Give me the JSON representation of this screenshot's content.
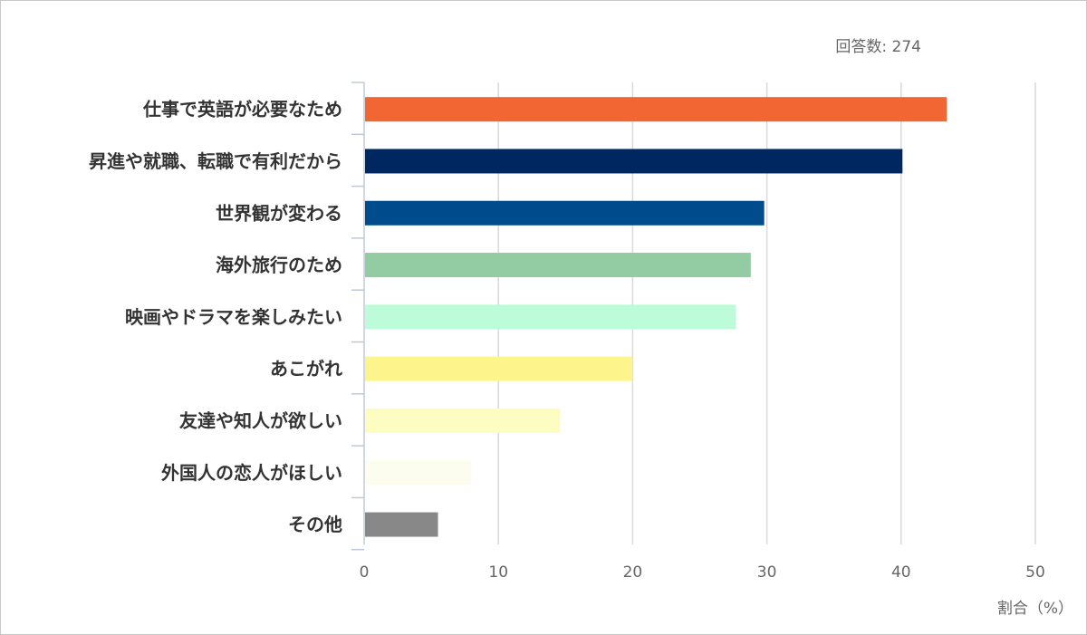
{
  "chart_data": {
    "type": "bar",
    "orientation": "horizontal",
    "respondents_label": "回答数: 274",
    "xlabel": "割合（%）",
    "xlim": [
      0,
      50
    ],
    "xticks": [
      "0",
      "10",
      "20",
      "30",
      "40",
      "50"
    ],
    "grid": true,
    "categories": [
      "仕事で英語が必要なため",
      "昇進や就職、転職で有利だから",
      "世界観が変わる",
      "海外旅行のため",
      "映画やドラマを楽しみたい",
      "あこがれ",
      "友達や知人が欲しい",
      "外国人の恋人がほしい",
      "その他"
    ],
    "values": [
      43.4,
      40.1,
      29.8,
      28.8,
      27.7,
      20.0,
      14.6,
      8.0,
      5.5
    ],
    "colors": [
      "#f26633",
      "#00275f",
      "#004b8c",
      "#93cca2",
      "#bdfcd9",
      "#fdf58c",
      "#fdfdc2",
      "#fdfdef",
      "#888888"
    ]
  }
}
